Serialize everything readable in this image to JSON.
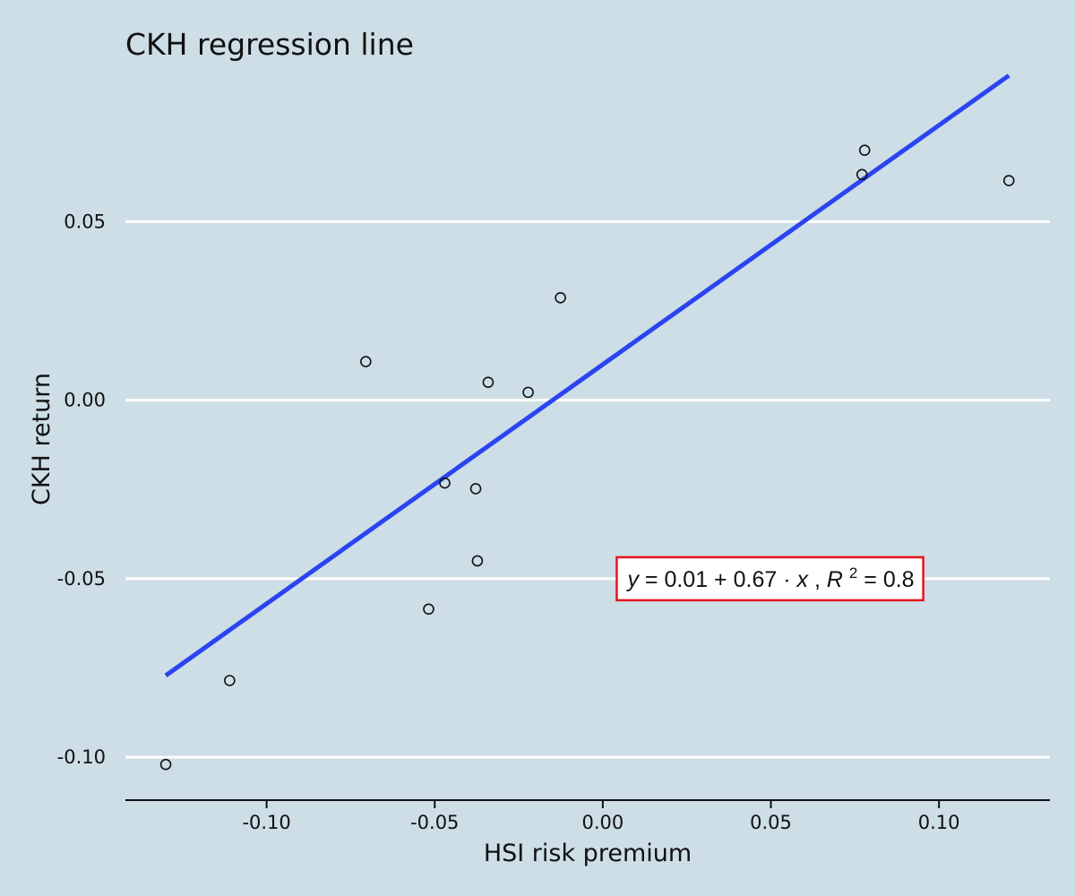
{
  "chart_data": {
    "type": "scatter",
    "title": "CKH regression line",
    "xlabel": "HSI risk premium",
    "ylabel": "CKH return",
    "xlim": [
      -0.142,
      0.133
    ],
    "ylim": [
      -0.112,
      0.092
    ],
    "x_ticks": [
      -0.1,
      -0.05,
      0.0,
      0.05,
      0.1
    ],
    "x_tick_labels": [
      "-0.10",
      "-0.05",
      "0.00",
      "0.05",
      "0.10"
    ],
    "y_ticks": [
      -0.1,
      -0.05,
      0.0,
      0.05
    ],
    "y_tick_labels": [
      "-0.10",
      "-0.05",
      "0.00",
      "0.05"
    ],
    "grid": "horizontal",
    "points": [
      {
        "x": -0.13,
        "y": -0.102
      },
      {
        "x": -0.111,
        "y": -0.0785
      },
      {
        "x": -0.0705,
        "y": 0.0108
      },
      {
        "x": -0.0518,
        "y": -0.0585
      },
      {
        "x": -0.047,
        "y": -0.0232
      },
      {
        "x": -0.0378,
        "y": -0.0248
      },
      {
        "x": -0.0373,
        "y": -0.045
      },
      {
        "x": -0.0341,
        "y": 0.005
      },
      {
        "x": -0.0222,
        "y": 0.0022
      },
      {
        "x": -0.0126,
        "y": 0.0287
      },
      {
        "x": 0.0771,
        "y": 0.0632
      },
      {
        "x": 0.0779,
        "y": 0.07
      },
      {
        "x": 0.1208,
        "y": 0.0615
      }
    ],
    "regression": {
      "intercept": 0.01,
      "slope": 0.67,
      "r_squared": 0.8,
      "x_range": [
        -0.13,
        0.1208
      ],
      "color": "#2b44f0"
    },
    "annotation": {
      "y_var": "y",
      "eq_middle": " = 0.01 + 0.67 · ",
      "x_var": "x",
      "sep": ",  ",
      "r_var": "R",
      "r_sup": "2",
      "r_val": " = 0.8",
      "position_x": 0.05,
      "position_y": -0.05,
      "border_color": "#e8141c"
    },
    "background_color": "#cddee6"
  }
}
